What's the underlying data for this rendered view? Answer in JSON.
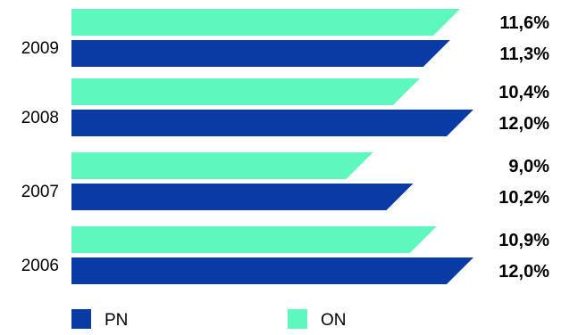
{
  "chart_data": {
    "type": "bar",
    "orientation": "horizontal",
    "categories": [
      "2009",
      "2008",
      "2007",
      "2006"
    ],
    "series": [
      {
        "name": "ON",
        "color": "#5ef7be",
        "values": [
          11.6,
          10.4,
          9.0,
          10.9
        ],
        "labels": [
          "11,6%",
          "10,4%",
          "9,0%",
          "10,9%"
        ]
      },
      {
        "name": "PN",
        "color": "#0a3aa3",
        "values": [
          11.3,
          12.0,
          10.2,
          12.0
        ],
        "labels": [
          "11,3%",
          "12,0%",
          "10,2%",
          "12,0%"
        ]
      }
    ],
    "legend": {
      "placement": "bottom",
      "items": [
        "PN",
        "ON"
      ]
    },
    "grid": false,
    "unit": "%"
  }
}
